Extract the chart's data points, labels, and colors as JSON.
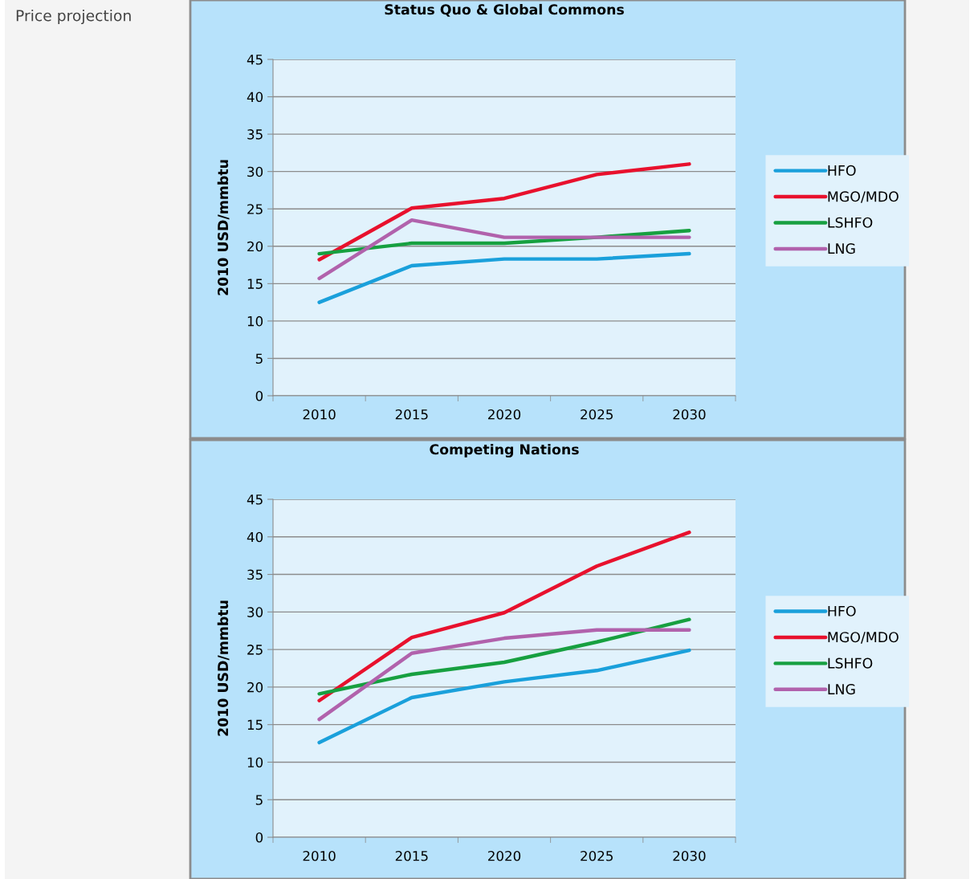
{
  "chart_data": [
    {
      "type": "line",
      "title": "Status Quo & Global Commons",
      "ylabel": "2010 USD/mmbtu",
      "annotations": [
        "Price projection"
      ],
      "categories": [
        "2010",
        "2015",
        "2020",
        "2025",
        "2030"
      ],
      "ylim": [
        0,
        45
      ],
      "yticks": [
        0,
        5,
        10,
        15,
        20,
        25,
        30,
        35,
        40,
        45
      ],
      "grid": "y",
      "legend": "right",
      "marker": "none",
      "line_style": "solid",
      "series": [
        {
          "name": "HFO",
          "color": "#1aa0db",
          "values": [
            12.5,
            17.4,
            18.3,
            18.3,
            19.0
          ]
        },
        {
          "name": "MGO/MDO",
          "color": "#e8112d",
          "values": [
            18.2,
            25.1,
            26.4,
            29.6,
            31.0
          ]
        },
        {
          "name": "LSHFO",
          "color": "#17a040",
          "values": [
            19.0,
            20.4,
            20.4,
            21.2,
            22.1
          ]
        },
        {
          "name": "LNG",
          "color": "#b162ac",
          "values": [
            15.7,
            23.5,
            21.2,
            21.2,
            21.2
          ]
        }
      ]
    },
    {
      "type": "line",
      "title": "Competing Nations",
      "ylabel": "2010 USD/mmbtu",
      "categories": [
        "2010",
        "2015",
        "2020",
        "2025",
        "2030"
      ],
      "ylim": [
        0,
        45
      ],
      "yticks": [
        0,
        5,
        10,
        15,
        20,
        25,
        30,
        35,
        40,
        45
      ],
      "grid": "y",
      "legend": "right",
      "marker": "none",
      "line_style": "solid",
      "series": [
        {
          "name": "HFO",
          "color": "#1aa0db",
          "values": [
            12.6,
            18.6,
            20.7,
            22.2,
            24.9
          ]
        },
        {
          "name": "MGO/MDO",
          "color": "#e8112d",
          "values": [
            18.2,
            26.6,
            29.9,
            36.1,
            40.6
          ]
        },
        {
          "name": "LSHFO",
          "color": "#17a040",
          "values": [
            19.1,
            21.7,
            23.3,
            26.0,
            29.0
          ]
        },
        {
          "name": "LNG",
          "color": "#b162ac",
          "values": [
            15.7,
            24.5,
            26.5,
            27.6,
            27.6
          ]
        }
      ]
    }
  ]
}
